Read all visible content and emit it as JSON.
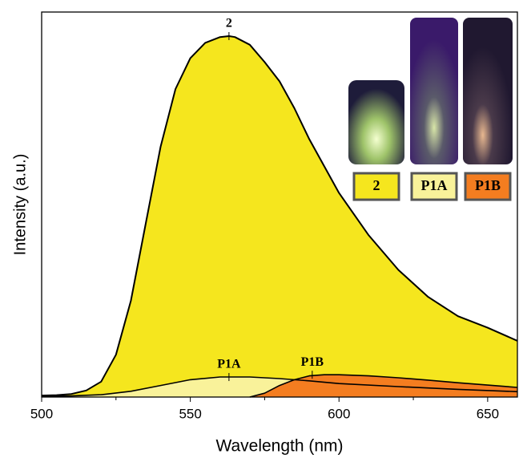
{
  "chart_data": {
    "type": "area",
    "x_label": "Wavelength (nm)",
    "y_label": "Intensity (a.u.)",
    "xlim": [
      500,
      660
    ],
    "ylim": [
      0,
      1
    ],
    "xticks": [
      500,
      550,
      600,
      650
    ],
    "xminorticks": [
      525,
      575,
      625
    ],
    "series": [
      {
        "name": "2",
        "color": "#f5e61e",
        "x": [
          500,
          505,
          510,
          515,
          520,
          525,
          530,
          535,
          540,
          545,
          550,
          555,
          560,
          563,
          565,
          570,
          575,
          580,
          585,
          590,
          595,
          600,
          610,
          620,
          630,
          640,
          650,
          660
        ],
        "values": [
          0.004,
          0.005,
          0.008,
          0.017,
          0.04,
          0.11,
          0.25,
          0.45,
          0.65,
          0.8,
          0.88,
          0.92,
          0.935,
          0.9375,
          0.935,
          0.915,
          0.87,
          0.82,
          0.75,
          0.67,
          0.6,
          0.53,
          0.42,
          0.33,
          0.26,
          0.21,
          0.18,
          0.146
        ]
      },
      {
        "name": "P1A",
        "color": "#f9f29a",
        "x": [
          500,
          510,
          520,
          530,
          540,
          550,
          560,
          570,
          580,
          590,
          600,
          620,
          640,
          660
        ],
        "values": [
          0.002,
          0.003,
          0.006,
          0.015,
          0.03,
          0.045,
          0.052,
          0.052,
          0.048,
          0.042,
          0.035,
          0.027,
          0.02,
          0.014
        ]
      },
      {
        "name": "P1B",
        "color": "#f47d20",
        "x": [
          570,
          575,
          580,
          585,
          590,
          595,
          600,
          610,
          620,
          630,
          640,
          650,
          660
        ],
        "values": [
          0,
          0.01,
          0.03,
          0.045,
          0.055,
          0.058,
          0.058,
          0.055,
          0.05,
          0.044,
          0.037,
          0.031,
          0.025
        ]
      }
    ],
    "annotations": [
      {
        "text": "2",
        "x": 563,
        "y": 0.9375
      },
      {
        "text": "P1A",
        "x": 563,
        "y": 0.052
      },
      {
        "text": "P1B",
        "x": 591,
        "y": 0.058
      }
    ]
  }
}
